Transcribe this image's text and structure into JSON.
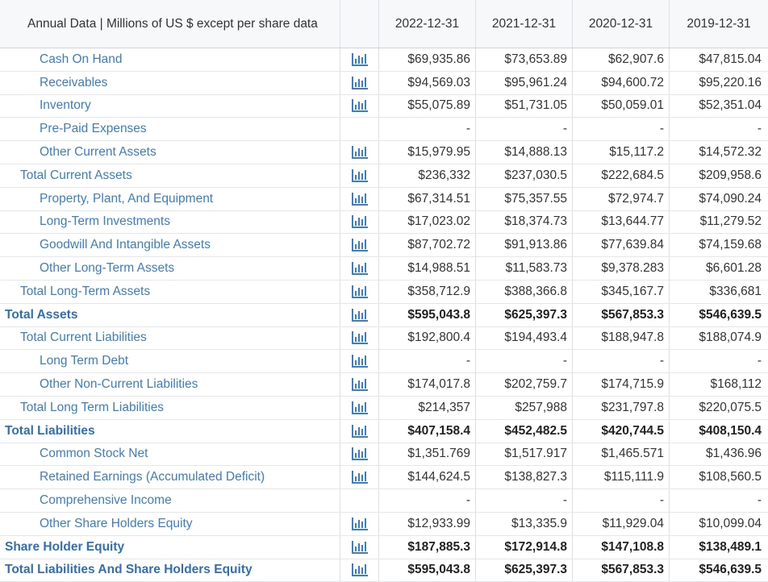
{
  "header": {
    "title": "Annual Data | Millions of US $ except per share data",
    "years": [
      "2022-12-31",
      "2021-12-31",
      "2020-12-31",
      "2019-12-31"
    ]
  },
  "colors": {
    "link": "#3a7fc1",
    "icon": "#3a7fc1",
    "text": "#333333"
  },
  "rows": [
    {
      "label": "Cash On Hand",
      "level": 2,
      "icon": true,
      "values": [
        "$69,935.86",
        "$73,653.89",
        "$62,907.6",
        "$47,815.04"
      ]
    },
    {
      "label": "Receivables",
      "level": 2,
      "icon": true,
      "values": [
        "$94,569.03",
        "$95,961.24",
        "$94,600.72",
        "$95,220.16"
      ]
    },
    {
      "label": "Inventory",
      "level": 2,
      "icon": true,
      "values": [
        "$55,075.89",
        "$51,731.05",
        "$50,059.01",
        "$52,351.04"
      ]
    },
    {
      "label": "Pre-Paid Expenses",
      "level": 2,
      "icon": false,
      "values": [
        "-",
        "-",
        "-",
        "-"
      ]
    },
    {
      "label": "Other Current Assets",
      "level": 2,
      "icon": true,
      "values": [
        "$15,979.95",
        "$14,888.13",
        "$15,117.2",
        "$14,572.32"
      ]
    },
    {
      "label": "Total Current Assets",
      "level": 1,
      "icon": true,
      "values": [
        "$236,332",
        "$237,030.5",
        "$222,684.5",
        "$209,958.6"
      ]
    },
    {
      "label": "Property, Plant, And Equipment",
      "level": 2,
      "icon": true,
      "values": [
        "$67,314.51",
        "$75,357.55",
        "$72,974.7",
        "$74,090.24"
      ]
    },
    {
      "label": "Long-Term Investments",
      "level": 2,
      "icon": true,
      "values": [
        "$17,023.02",
        "$18,374.73",
        "$13,644.77",
        "$11,279.52"
      ]
    },
    {
      "label": "Goodwill And Intangible Assets",
      "level": 2,
      "icon": true,
      "values": [
        "$87,702.72",
        "$91,913.86",
        "$77,639.84",
        "$74,159.68"
      ]
    },
    {
      "label": "Other Long-Term Assets",
      "level": 2,
      "icon": true,
      "values": [
        "$14,988.51",
        "$11,583.73",
        "$9,378.283",
        "$6,601.28"
      ]
    },
    {
      "label": "Total Long-Term Assets",
      "level": 1,
      "icon": true,
      "values": [
        "$358,712.9",
        "$388,366.8",
        "$345,167.7",
        "$336,681"
      ]
    },
    {
      "label": "Total Assets",
      "level": 0,
      "icon": true,
      "values": [
        "$595,043.8",
        "$625,397.3",
        "$567,853.3",
        "$546,639.5"
      ]
    },
    {
      "label": "Total Current Liabilities",
      "level": 1,
      "icon": true,
      "values": [
        "$192,800.4",
        "$194,493.4",
        "$188,947.8",
        "$188,074.9"
      ]
    },
    {
      "label": "Long Term Debt",
      "level": 2,
      "icon": true,
      "values": [
        "-",
        "-",
        "-",
        "-"
      ]
    },
    {
      "label": "Other Non-Current Liabilities",
      "level": 2,
      "icon": true,
      "values": [
        "$174,017.8",
        "$202,759.7",
        "$174,715.9",
        "$168,112"
      ]
    },
    {
      "label": "Total Long Term Liabilities",
      "level": 1,
      "icon": true,
      "values": [
        "$214,357",
        "$257,988",
        "$231,797.8",
        "$220,075.5"
      ]
    },
    {
      "label": "Total Liabilities",
      "level": 0,
      "icon": true,
      "values": [
        "$407,158.4",
        "$452,482.5",
        "$420,744.5",
        "$408,150.4"
      ]
    },
    {
      "label": "Common Stock Net",
      "level": 2,
      "icon": true,
      "values": [
        "$1,351.769",
        "$1,517.917",
        "$1,465.571",
        "$1,436.96"
      ]
    },
    {
      "label": "Retained Earnings (Accumulated Deficit)",
      "level": 2,
      "icon": true,
      "values": [
        "$144,624.5",
        "$138,827.3",
        "$115,111.9",
        "$108,560.5"
      ]
    },
    {
      "label": "Comprehensive Income",
      "level": 2,
      "icon": false,
      "values": [
        "-",
        "-",
        "-",
        "-"
      ]
    },
    {
      "label": "Other Share Holders Equity",
      "level": 2,
      "icon": true,
      "values": [
        "$12,933.99",
        "$13,335.9",
        "$11,929.04",
        "$10,099.04"
      ]
    },
    {
      "label": "Share Holder Equity",
      "level": 0,
      "icon": true,
      "values": [
        "$187,885.3",
        "$172,914.8",
        "$147,108.8",
        "$138,489.1"
      ]
    },
    {
      "label": "Total Liabilities And Share Holders Equity",
      "level": 0,
      "icon": true,
      "values": [
        "$595,043.8",
        "$625,397.3",
        "$567,853.3",
        "$546,639.5"
      ]
    }
  ]
}
